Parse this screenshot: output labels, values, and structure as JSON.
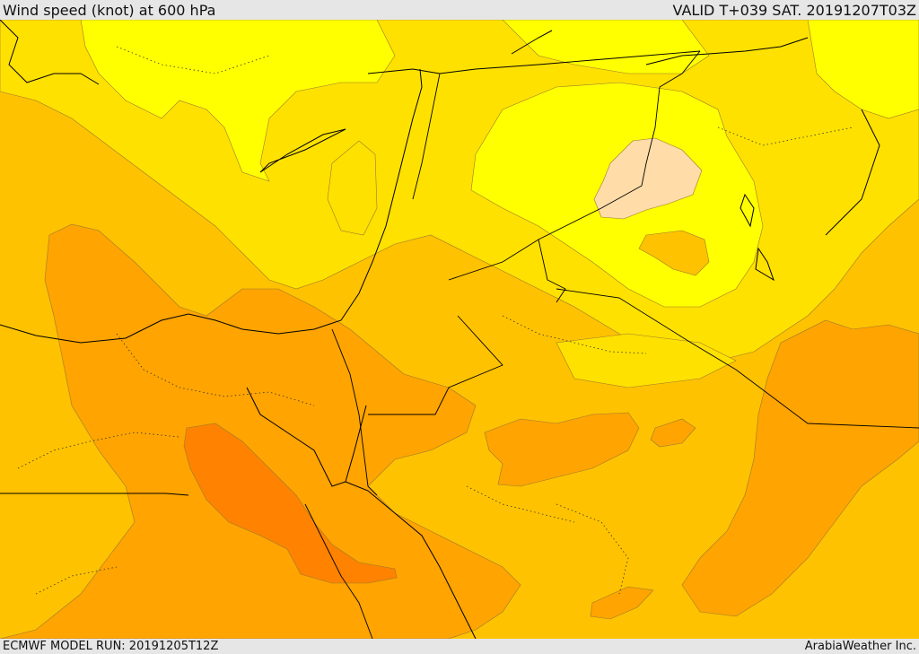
{
  "header": {
    "title": "Wind speed (knot) at 600 hPa",
    "valid": "VALID T+039 SAT. 20191207T03Z"
  },
  "footer": {
    "model_run": "ECMWF MODEL RUN: 20191205T12Z",
    "credit": "ArabiaWeather Inc."
  },
  "map": {
    "palette": {
      "lightest": "#ffff00",
      "pale": "#ffe100",
      "mid": "#ffc200",
      "darker": "#ffa400",
      "darkest": "#ff8200",
      "peach": "#ffdca8"
    }
  }
}
